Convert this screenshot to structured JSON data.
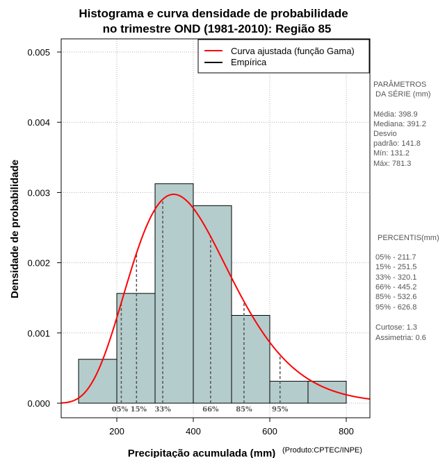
{
  "chart_data": {
    "type": "bar",
    "title_line1": "Histograma e curva densidade de probabilidade",
    "title_line2": "no trimestre OND (1981-2010): Região 85",
    "xlabel": "Precipitação acumulada (mm)",
    "ylabel": "Densidade de probabilidade",
    "credit": "(Produto:CPTEC/INPE)",
    "xlim": [
      50,
      860
    ],
    "ylim": [
      0,
      0.0052
    ],
    "xticks": [
      "200",
      "400",
      "600",
      "800"
    ],
    "xtick_values": [
      200,
      400,
      600,
      800
    ],
    "yticks": [
      "0.000",
      "0.001",
      "0.002",
      "0.003",
      "0.004",
      "0.005"
    ],
    "ytick_values": [
      0,
      0.001,
      0.002,
      0.003,
      0.004,
      0.005
    ],
    "grid": true,
    "bins": [
      {
        "from": 100,
        "to": 200,
        "density": 0.000625
      },
      {
        "from": 200,
        "to": 300,
        "density": 0.001563
      },
      {
        "from": 300,
        "to": 400,
        "density": 0.003125
      },
      {
        "from": 400,
        "to": 500,
        "density": 0.002813
      },
      {
        "from": 500,
        "to": 600,
        "density": 0.00125
      },
      {
        "from": 600,
        "to": 700,
        "density": 0.0003125
      },
      {
        "from": 700,
        "to": 800,
        "density": 0.0003125
      }
    ],
    "gamma_fit": {
      "mean": 398.9,
      "sd": 141.8
    },
    "legend": [
      {
        "label": "Curva ajustada (função Gama)",
        "color": "#ff0000"
      },
      {
        "label": "Empírica",
        "color": "#000000"
      }
    ],
    "percentile_marks": [
      {
        "label": "05%",
        "value": 211.7
      },
      {
        "label": "15%",
        "value": 251.5
      },
      {
        "label": "33%",
        "value": 320.1
      },
      {
        "label": "66%",
        "value": 445.2
      },
      {
        "label": "85%",
        "value": 532.6
      },
      {
        "label": "95%",
        "value": 626.8
      }
    ]
  },
  "colors": {
    "bar_fill": "#b4cccc",
    "curve": "#ff0000",
    "grid": "#b0b0b0",
    "side_text": "#555555"
  },
  "side_panel": {
    "params_title_1": "PARÂMETROS",
    "params_title_2": "DA SÉRIE (mm)",
    "media": "Média:  398.9",
    "mediana": "Mediana:  391.2",
    "desvio_1": "Desvio",
    "desvio_2": "padrão:  141.8",
    "min": "Mín:  131.2",
    "max": "Máx:  781.3",
    "percentis_title": "PERCENTIS(mm)",
    "p05": "05% -  211.7",
    "p15": "15% -  251.5",
    "p33": "33% -  320.1",
    "p66": "66% -  445.2",
    "p85": "85% -  532.6",
    "p95": "95% -  626.8",
    "curtose": "Curtose:  1.3",
    "assimetria": "Assimetria:  0.6"
  }
}
